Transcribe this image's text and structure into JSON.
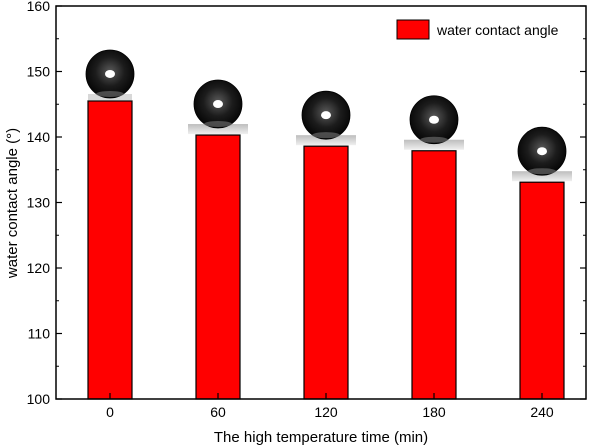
{
  "chart_data": {
    "type": "bar",
    "categories": [
      "0",
      "60",
      "120",
      "180",
      "240"
    ],
    "series": [
      {
        "name": "water contact angle",
        "values": [
          145.5,
          140.3,
          138.6,
          137.9,
          133.1
        ]
      }
    ],
    "xlabel": "The high temperature time (min)",
    "ylabel": "water contact angle (°)",
    "ylim": [
      100,
      160
    ],
    "yticks": [
      100,
      110,
      120,
      130,
      140,
      150,
      160
    ],
    "grid": false,
    "legend_position": "top-right",
    "bar_color": "#ff0000",
    "bar_edge_color": "#000000",
    "droplet_images": "water droplet photo above each bar"
  }
}
